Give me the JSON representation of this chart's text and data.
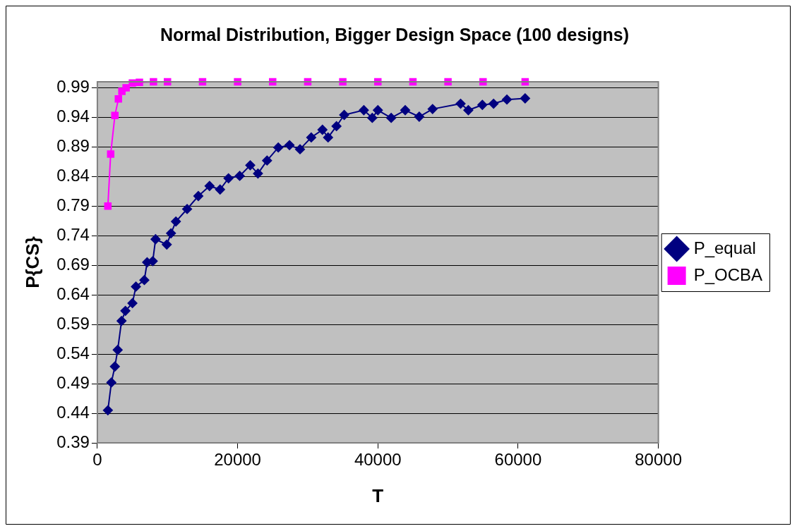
{
  "chart_data": {
    "type": "line",
    "title": "Normal Distribution, Bigger Design Space (100 designs)",
    "xlabel": "T",
    "ylabel": "P{CS}",
    "xlim": [
      0,
      80000
    ],
    "xticks": [
      0,
      20000,
      40000,
      60000,
      80000
    ],
    "ylim": [
      0.39,
      1.0
    ],
    "yticks": [
      0.39,
      0.44,
      0.49,
      0.54,
      0.59,
      0.64,
      0.69,
      0.74,
      0.79,
      0.84,
      0.89,
      0.94,
      0.99
    ],
    "grid": "y",
    "legend": "right",
    "line_style": "solid",
    "series": [
      {
        "name": "P_equal",
        "color": "#000080",
        "marker": "diamond",
        "x": [
          1500,
          2000,
          2500,
          2900,
          3450,
          4000,
          5000,
          5500,
          6700,
          7100,
          7900,
          8300,
          9900,
          10500,
          11200,
          12800,
          14400,
          16000,
          17500,
          18700,
          20300,
          21800,
          22900,
          24200,
          25800,
          27400,
          28900,
          30500,
          32100,
          32900,
          34100,
          35200,
          38000,
          39200,
          40000,
          41900,
          43900,
          45900,
          47800,
          51800,
          52900,
          54900,
          56500,
          58400,
          61000
        ],
        "values": [
          0.445,
          0.492,
          0.519,
          0.547,
          0.596,
          0.613,
          0.626,
          0.654,
          0.665,
          0.695,
          0.697,
          0.734,
          0.725,
          0.744,
          0.764,
          0.785,
          0.807,
          0.824,
          0.818,
          0.837,
          0.841,
          0.859,
          0.845,
          0.867,
          0.889,
          0.893,
          0.886,
          0.906,
          0.919,
          0.906,
          0.925,
          0.944,
          0.952,
          0.939,
          0.952,
          0.939,
          0.952,
          0.941,
          0.954,
          0.963,
          0.952,
          0.961,
          0.963,
          0.97,
          0.972
        ]
      },
      {
        "name": "P_OCBA",
        "color": "#ff00ff",
        "marker": "square",
        "x": [
          1500,
          1900,
          2500,
          3000,
          3500,
          4100,
          5000,
          6000,
          8000,
          10000,
          15000,
          20000,
          25000,
          30000,
          35000,
          40000,
          45000,
          50000,
          55000,
          61000
        ],
        "values": [
          0.79,
          0.878,
          0.943,
          0.971,
          0.984,
          0.99,
          0.998,
          0.999,
          1.0,
          1.0,
          1.0,
          1.0,
          1.0,
          1.0,
          1.0,
          1.0,
          1.0,
          1.0,
          1.0,
          1.0
        ]
      }
    ]
  }
}
